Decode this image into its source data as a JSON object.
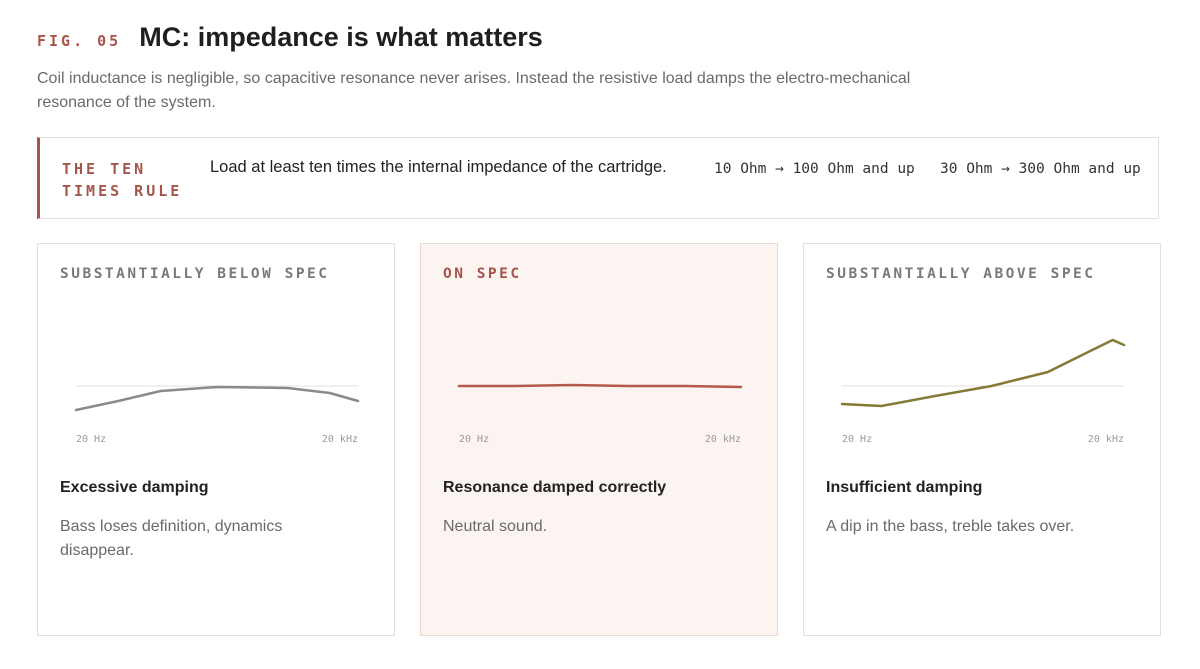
{
  "header": {
    "fig_label": "FIG. 05",
    "title": "MC: impedance is what matters",
    "subtitle": "Coil inductance is negligible, so capacitive resonance never arises. Instead the resistive load damps the electro-mechanical resonance of the system."
  },
  "rule": {
    "label": "THE TEN TIMES RULE",
    "text": "Load at least ten times the internal impedance of the cartridge.",
    "examples": [
      "10 Ohm → 100 Ohm and up",
      "30 Ohm → 300 Ohm and up"
    ]
  },
  "colors": {
    "accent": "#a5554a",
    "below": "#8a8a8a",
    "on": "#b35a4d",
    "above": "#857a35",
    "reference": "#e4e2df"
  },
  "cards": [
    {
      "label": "SUBSTANTIALLY BELOW SPEC",
      "heading": "Excessive damping",
      "description": "Bass loses definition, dynamics disappear.",
      "x_start": "20 Hz",
      "x_end": "20 kHz",
      "curve": [
        [
          0,
          -2.4
        ],
        [
          0.15,
          -1.5
        ],
        [
          0.3,
          -0.5
        ],
        [
          0.5,
          -0.1
        ],
        [
          0.75,
          -0.2
        ],
        [
          0.9,
          -0.7
        ],
        [
          1,
          -1.5
        ]
      ]
    },
    {
      "label": "ON SPEC",
      "heading": "Resonance damped correctly",
      "description": "Neutral sound.",
      "x_start": "20 Hz",
      "x_end": "20 kHz",
      "curve": [
        [
          0,
          0
        ],
        [
          0.2,
          0
        ],
        [
          0.4,
          0.1
        ],
        [
          0.6,
          0
        ],
        [
          0.8,
          0
        ],
        [
          1,
          -0.1
        ]
      ]
    },
    {
      "label": "SUBSTANTIALLY ABOVE SPEC",
      "heading": "Insufficient damping",
      "description": "A dip in the bass, treble takes over.",
      "x_start": "20 Hz",
      "x_end": "20 kHz",
      "curve": [
        [
          0,
          -1.8
        ],
        [
          0.14,
          -2.0
        ],
        [
          0.33,
          -1.0
        ],
        [
          0.53,
          0.0
        ],
        [
          0.73,
          1.4
        ],
        [
          0.88,
          3.5
        ],
        [
          0.96,
          4.6
        ],
        [
          1,
          4.1
        ]
      ]
    }
  ]
}
